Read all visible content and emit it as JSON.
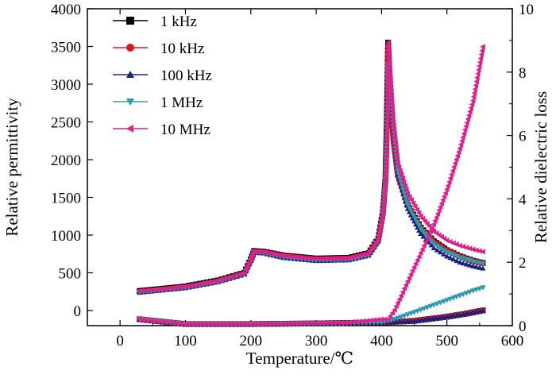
{
  "chart_data": {
    "type": "line",
    "xlabel": "Temperature/℃",
    "ylabel_left": "Relative permittivity",
    "ylabel_right": "Relative dielectric loss",
    "xlim": [
      -50,
      600
    ],
    "ylim_left": [
      -200,
      4000
    ],
    "ylim_right": [
      0,
      10
    ],
    "x_ticks": [
      0,
      100,
      200,
      300,
      400,
      500,
      600
    ],
    "y_ticks_left": [
      0,
      500,
      1000,
      1500,
      2000,
      2500,
      3000,
      3500,
      4000
    ],
    "y_ticks_right": [
      0,
      2,
      4,
      6,
      8,
      10
    ],
    "x_tick_labels": [
      "0",
      "100",
      "200",
      "300",
      "400",
      "500",
      "600"
    ],
    "y_tick_labels_left": [
      "0",
      "500",
      "1000",
      "1500",
      "2000",
      "2500",
      "3000",
      "3500",
      "4000"
    ],
    "y_tick_labels_right": [
      "0",
      "2",
      "4",
      "6",
      "8",
      "10"
    ],
    "legend_position": "top-left",
    "grid": false,
    "series": [
      {
        "name": "1 kHz",
        "color": "#000000",
        "marker": "square",
        "permittivity": [
          [
            30,
            260
          ],
          [
            100,
            320
          ],
          [
            150,
            400
          ],
          [
            190,
            500
          ],
          [
            200,
            680
          ],
          [
            205,
            790
          ],
          [
            220,
            780
          ],
          [
            250,
            730
          ],
          [
            300,
            690
          ],
          [
            350,
            700
          ],
          [
            380,
            760
          ],
          [
            395,
            950
          ],
          [
            402,
            1300
          ],
          [
            406,
            1750
          ],
          [
            408,
            2500
          ],
          [
            410,
            3550
          ],
          [
            413,
            3000
          ],
          [
            418,
            2300
          ],
          [
            425,
            1800
          ],
          [
            440,
            1400
          ],
          [
            460,
            1100
          ],
          [
            480,
            920
          ],
          [
            500,
            800
          ],
          [
            520,
            720
          ],
          [
            540,
            660
          ],
          [
            555,
            630
          ]
        ],
        "loss": [
          [
            30,
            0.2
          ],
          [
            100,
            0.05
          ],
          [
            200,
            0.05
          ],
          [
            300,
            0.07
          ],
          [
            400,
            0.1
          ],
          [
            450,
            0.15
          ],
          [
            500,
            0.28
          ],
          [
            530,
            0.38
          ],
          [
            555,
            0.48
          ]
        ]
      },
      {
        "name": "10 kHz",
        "color": "#e0141c",
        "marker": "circle",
        "permittivity": [
          [
            30,
            250
          ],
          [
            100,
            310
          ],
          [
            150,
            390
          ],
          [
            190,
            490
          ],
          [
            200,
            670
          ],
          [
            205,
            780
          ],
          [
            220,
            770
          ],
          [
            250,
            720
          ],
          [
            300,
            680
          ],
          [
            350,
            690
          ],
          [
            380,
            750
          ],
          [
            395,
            940
          ],
          [
            402,
            1290
          ],
          [
            406,
            1700
          ],
          [
            408,
            2300
          ],
          [
            410,
            3500
          ],
          [
            413,
            3000
          ],
          [
            418,
            2250
          ],
          [
            425,
            1780
          ],
          [
            440,
            1390
          ],
          [
            460,
            1090
          ],
          [
            480,
            910
          ],
          [
            500,
            795
          ],
          [
            520,
            715
          ],
          [
            540,
            655
          ],
          [
            555,
            625
          ]
        ],
        "loss": [
          [
            30,
            0.2
          ],
          [
            100,
            0.05
          ],
          [
            200,
            0.05
          ],
          [
            300,
            0.07
          ],
          [
            400,
            0.1
          ],
          [
            450,
            0.15
          ],
          [
            500,
            0.28
          ],
          [
            530,
            0.38
          ],
          [
            555,
            0.48
          ]
        ]
      },
      {
        "name": "100 kHz",
        "color": "#1a237e",
        "marker": "triangle-up",
        "permittivity": [
          [
            30,
            240
          ],
          [
            100,
            300
          ],
          [
            150,
            380
          ],
          [
            190,
            480
          ],
          [
            200,
            660
          ],
          [
            205,
            770
          ],
          [
            220,
            760
          ],
          [
            250,
            700
          ],
          [
            300,
            660
          ],
          [
            350,
            670
          ],
          [
            380,
            730
          ],
          [
            395,
            920
          ],
          [
            402,
            1280
          ],
          [
            406,
            1700
          ],
          [
            408,
            2300
          ],
          [
            410,
            3300
          ],
          [
            413,
            3100
          ],
          [
            418,
            2400
          ],
          [
            425,
            1800
          ],
          [
            440,
            1350
          ],
          [
            460,
            1020
          ],
          [
            480,
            830
          ],
          [
            500,
            720
          ],
          [
            520,
            640
          ],
          [
            540,
            590
          ],
          [
            555,
            560
          ]
        ],
        "loss": [
          [
            30,
            0.2
          ],
          [
            100,
            0.05
          ],
          [
            200,
            0.05
          ],
          [
            300,
            0.07
          ],
          [
            400,
            0.1
          ],
          [
            450,
            0.15
          ],
          [
            500,
            0.28
          ],
          [
            530,
            0.38
          ],
          [
            555,
            0.48
          ]
        ]
      },
      {
        "name": "1 MHz",
        "color": "#2d9bb0",
        "marker": "triangle-down",
        "permittivity": [
          [
            30,
            245
          ],
          [
            100,
            305
          ],
          [
            150,
            385
          ],
          [
            190,
            485
          ],
          [
            200,
            665
          ],
          [
            205,
            775
          ],
          [
            220,
            765
          ],
          [
            250,
            705
          ],
          [
            300,
            665
          ],
          [
            350,
            675
          ],
          [
            380,
            735
          ],
          [
            395,
            925
          ],
          [
            402,
            1280
          ],
          [
            406,
            1700
          ],
          [
            408,
            2300
          ],
          [
            410,
            3250
          ],
          [
            413,
            3150
          ],
          [
            418,
            2450
          ],
          [
            425,
            1850
          ],
          [
            440,
            1400
          ],
          [
            460,
            1080
          ],
          [
            480,
            880
          ],
          [
            500,
            770
          ],
          [
            520,
            700
          ],
          [
            540,
            650
          ],
          [
            555,
            620
          ]
        ],
        "loss": [
          [
            30,
            0.2
          ],
          [
            100,
            0.05
          ],
          [
            200,
            0.05
          ],
          [
            300,
            0.07
          ],
          [
            400,
            0.1
          ],
          [
            420,
            0.2
          ],
          [
            450,
            0.42
          ],
          [
            480,
            0.65
          ],
          [
            500,
            0.8
          ],
          [
            520,
            0.95
          ],
          [
            540,
            1.1
          ],
          [
            555,
            1.2
          ]
        ]
      },
      {
        "name": "10 MHz",
        "color": "#e01e8c",
        "marker": "triangle-left",
        "permittivity": [
          [
            30,
            255
          ],
          [
            100,
            315
          ],
          [
            150,
            395
          ],
          [
            190,
            495
          ],
          [
            200,
            675
          ],
          [
            205,
            785
          ],
          [
            220,
            775
          ],
          [
            250,
            725
          ],
          [
            300,
            685
          ],
          [
            350,
            695
          ],
          [
            380,
            755
          ],
          [
            395,
            945
          ],
          [
            402,
            1290
          ],
          [
            406,
            1700
          ],
          [
            408,
            2300
          ],
          [
            410,
            3550
          ],
          [
            413,
            3150
          ],
          [
            418,
            2500
          ],
          [
            425,
            1950
          ],
          [
            440,
            1550
          ],
          [
            460,
            1250
          ],
          [
            480,
            1050
          ],
          [
            500,
            930
          ],
          [
            520,
            860
          ],
          [
            540,
            810
          ],
          [
            555,
            780
          ]
        ],
        "loss": [
          [
            30,
            0.2
          ],
          [
            100,
            0.05
          ],
          [
            200,
            0.05
          ],
          [
            300,
            0.08
          ],
          [
            350,
            0.1
          ],
          [
            400,
            0.2
          ],
          [
            410,
            0.2
          ],
          [
            420,
            0.5
          ],
          [
            440,
            1.4
          ],
          [
            460,
            2.3
          ],
          [
            480,
            3.2
          ],
          [
            500,
            4.3
          ],
          [
            520,
            5.6
          ],
          [
            540,
            7.1
          ],
          [
            555,
            8.8
          ]
        ]
      }
    ]
  }
}
